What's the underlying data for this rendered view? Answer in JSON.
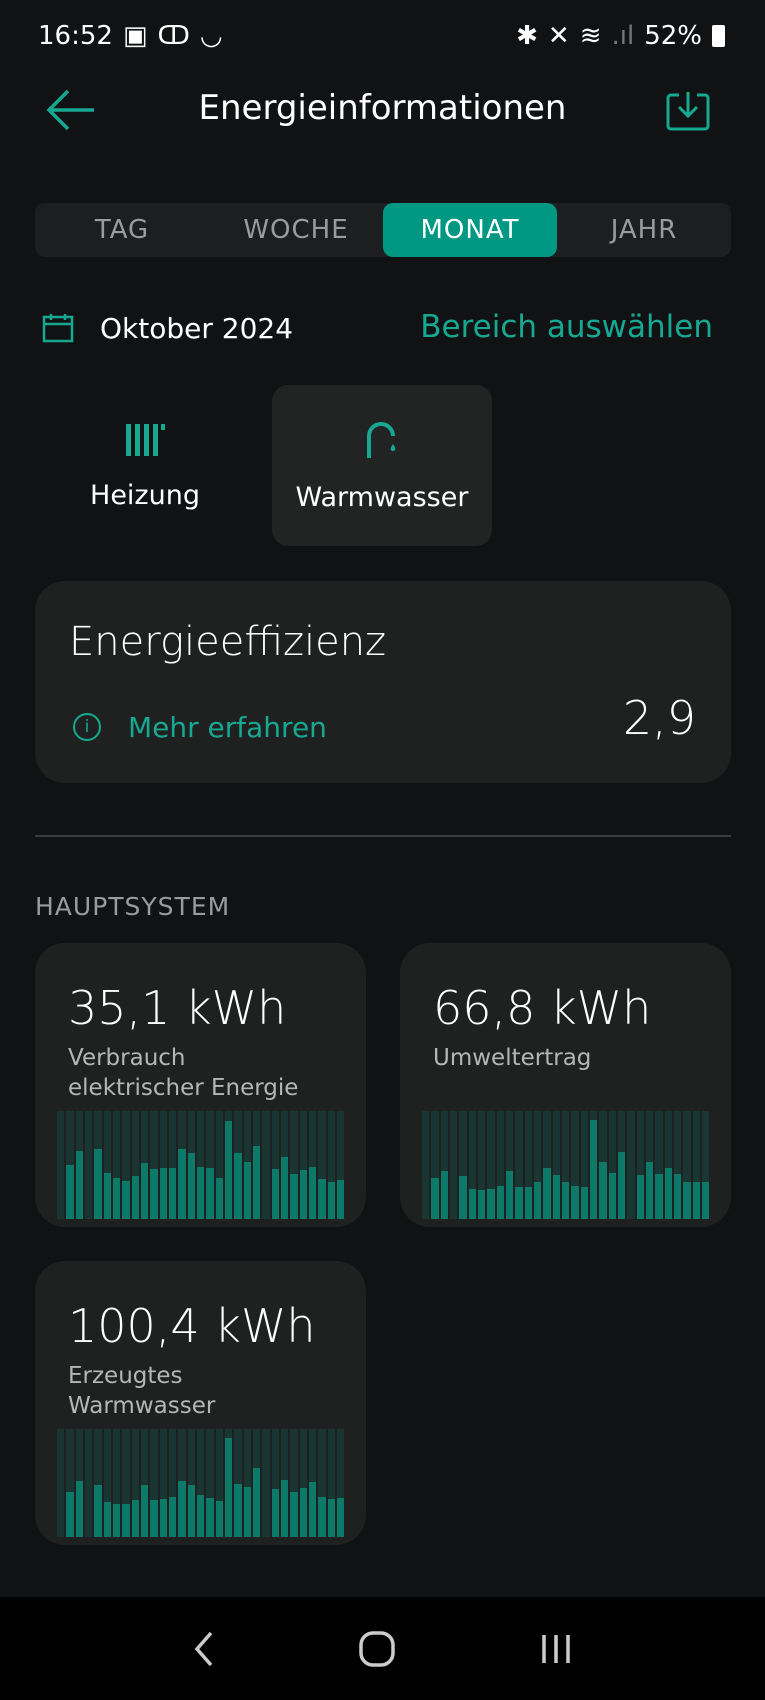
{
  "status": {
    "time": "16:52",
    "battery": "52%"
  },
  "header": {
    "title": "Energieinformationen",
    "back_icon": "arrow-left-icon",
    "export_icon": "download-icon"
  },
  "tabs": [
    {
      "label": "TAG"
    },
    {
      "label": "WOCHE"
    },
    {
      "label": "MONAT",
      "active": true
    },
    {
      "label": "JAHR"
    }
  ],
  "period": {
    "label": "Oktober 2024",
    "range_link": "Bereich auswählen"
  },
  "categories": [
    {
      "label": "Heizung",
      "icon": "radiator-icon"
    },
    {
      "label": "Warmwasser",
      "icon": "faucet-icon",
      "selected": true
    }
  ],
  "efficiency": {
    "title": "Energieeffizienz",
    "link": "Mehr erfahren",
    "value": "2,9"
  },
  "section": "HAUPTSYSTEM",
  "colors": {
    "accent": "#009883",
    "background": "#101214",
    "card": "#1f2121"
  },
  "chart_data": [
    {
      "type": "bar",
      "title": "",
      "value": "35,1 kWh",
      "label": "Verbrauch elektrischer Energie",
      "categories": [
        "1",
        "2",
        "3",
        "4",
        "5",
        "6",
        "7",
        "8",
        "9",
        "10",
        "11",
        "12",
        "13",
        "14",
        "15",
        "16",
        "17",
        "18",
        "19",
        "20",
        "21",
        "22",
        "23",
        "24",
        "25",
        "26",
        "27",
        "28",
        "29",
        "30",
        "31"
      ],
      "values": [
        0,
        0.5,
        0.63,
        0,
        0.65,
        0.43,
        0.38,
        0.35,
        0.4,
        0.52,
        0.46,
        0.47,
        0.47,
        0.65,
        0.61,
        0.48,
        0.47,
        0.38,
        0.91,
        0.61,
        0.53,
        0.68,
        0,
        0.46,
        0.57,
        0.42,
        0.45,
        0.48,
        0.37,
        0.34,
        0.36
      ]
    },
    {
      "type": "bar",
      "title": "",
      "value": "66,8 kWh",
      "label": "Umweltertrag",
      "categories": [
        "1",
        "2",
        "3",
        "4",
        "5",
        "6",
        "7",
        "8",
        "9",
        "10",
        "11",
        "12",
        "13",
        "14",
        "15",
        "16",
        "17",
        "18",
        "19",
        "20",
        "21",
        "22",
        "23",
        "24",
        "25",
        "26",
        "27",
        "28",
        "29",
        "30",
        "31"
      ],
      "values": [
        0,
        0.38,
        0.44,
        0,
        0.4,
        0.28,
        0.27,
        0.28,
        0.31,
        0.44,
        0.3,
        0.3,
        0.34,
        0.47,
        0.41,
        0.34,
        0.31,
        0.3,
        0.92,
        0.53,
        0.43,
        0.62,
        0,
        0.41,
        0.53,
        0.42,
        0.47,
        0.42,
        0.34,
        0.34,
        0.34
      ]
    },
    {
      "type": "bar",
      "title": "",
      "value": "100,4 kWh",
      "label": "Erzeugtes Warmwasser",
      "categories": [
        "1",
        "2",
        "3",
        "4",
        "5",
        "6",
        "7",
        "8",
        "9",
        "10",
        "11",
        "12",
        "13",
        "14",
        "15",
        "16",
        "17",
        "18",
        "19",
        "20",
        "21",
        "22",
        "23",
        "24",
        "25",
        "26",
        "27",
        "28",
        "29",
        "30",
        "31"
      ],
      "values": [
        0,
        0.42,
        0.52,
        0,
        0.48,
        0.32,
        0.31,
        0.31,
        0.34,
        0.48,
        0.34,
        0.35,
        0.37,
        0.52,
        0.48,
        0.39,
        0.36,
        0.33,
        0.92,
        0.49,
        0.46,
        0.64,
        0,
        0.44,
        0.53,
        0.42,
        0.45,
        0.51,
        0.37,
        0.35,
        0.36
      ]
    }
  ]
}
